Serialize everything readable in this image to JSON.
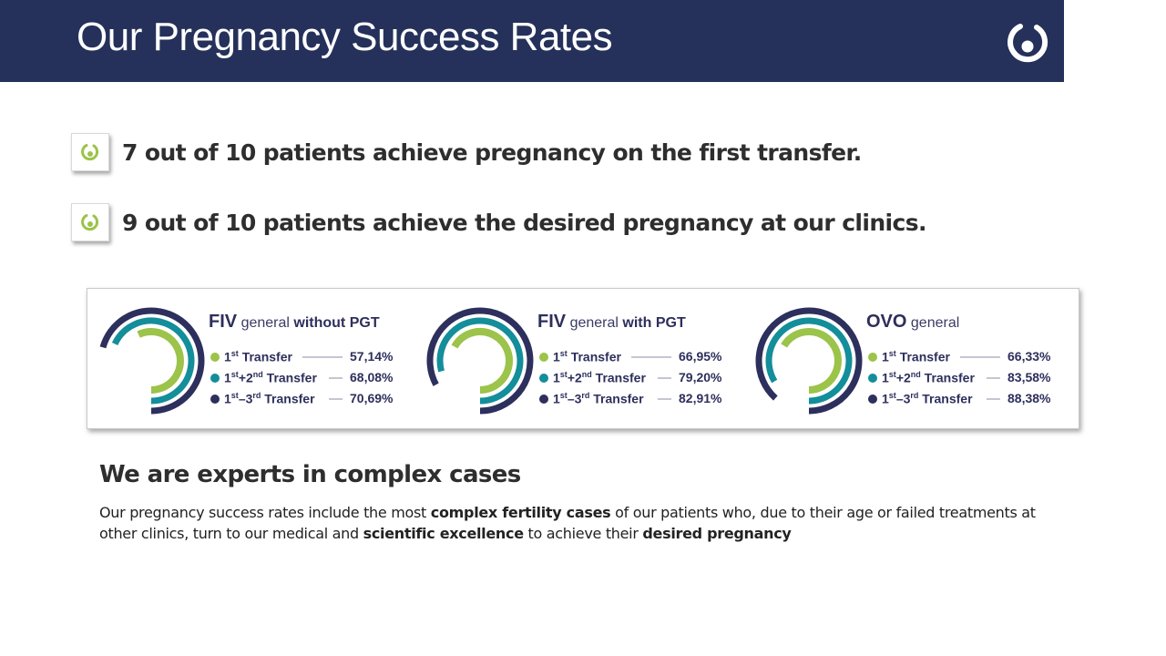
{
  "header": {
    "title": "Our Pregnancy Success Rates",
    "logo_icon": "clinic-logo-icon"
  },
  "bullets": [
    {
      "icon": "circular-arrow-icon",
      "text": "7 out of 10 patients achieve pregnancy on the first transfer."
    },
    {
      "icon": "circular-arrow-icon",
      "text": "9 out of 10 patients achieve the desired pregnancy at our clinics."
    }
  ],
  "colors": {
    "header_bg": "#25315a",
    "first_transfer": "#9cc34a",
    "second_transfer": "#138e9a",
    "third_transfer": "#2d2f5c",
    "bullet_icon": "#9cc34a"
  },
  "chart_data": [
    {
      "type": "radial-bar",
      "title": {
        "main": "FIV",
        "mid": "general",
        "end": "without PGT"
      },
      "series": [
        {
          "label_base": "1",
          "label_sup": "st",
          "label_rest": " Transfer",
          "value": 57.14,
          "display": "57,14%"
        },
        {
          "label_base": "1",
          "label_sup": "st",
          "label_rest": "+2",
          "label_sup2": "nd",
          "label_rest2": " Transfer",
          "value": 68.08,
          "display": "68,08%"
        },
        {
          "label_base": "1",
          "label_sup": "st",
          "label_rest": "–3",
          "label_sup2": "rd",
          "label_rest2": " Transfer",
          "value": 70.69,
          "display": "70,69%"
        }
      ]
    },
    {
      "type": "radial-bar",
      "title": {
        "main": "FIV",
        "mid": "general",
        "end": "with PGT"
      },
      "series": [
        {
          "label_base": "1",
          "label_sup": "st",
          "label_rest": " Transfer",
          "value": 66.95,
          "display": "66,95%"
        },
        {
          "label_base": "1",
          "label_sup": "st",
          "label_rest": "+2",
          "label_sup2": "nd",
          "label_rest2": " Transfer",
          "value": 79.2,
          "display": "79,20%"
        },
        {
          "label_base": "1",
          "label_sup": "st",
          "label_rest": "–3",
          "label_sup2": "rd",
          "label_rest2": " Transfer",
          "value": 82.91,
          "display": "82,91%"
        }
      ]
    },
    {
      "type": "radial-bar",
      "title": {
        "main": "OVO",
        "mid": "general",
        "end": ""
      },
      "series": [
        {
          "label_base": "1",
          "label_sup": "st",
          "label_rest": " Transfer",
          "value": 66.33,
          "display": "66,33%"
        },
        {
          "label_base": "1",
          "label_sup": "st",
          "label_rest": "+2",
          "label_sup2": "nd",
          "label_rest2": " Transfer",
          "value": 83.58,
          "display": "83,58%"
        },
        {
          "label_base": "1",
          "label_sup": "st",
          "label_rest": "–3",
          "label_sup2": "rd",
          "label_rest2": " Transfer",
          "value": 88.38,
          "display": "88,38%"
        }
      ]
    }
  ],
  "experts": {
    "title": "We are experts in complex cases",
    "p1": "Our pregnancy success rates include the most ",
    "b1": "complex fertility cases",
    "p2": " of our patients who, due to their age or failed treatments at other clinics, turn to our medical and ",
    "b2": "scientific excellence",
    "p3": " to achieve their ",
    "b3": "desired pregnancy"
  }
}
